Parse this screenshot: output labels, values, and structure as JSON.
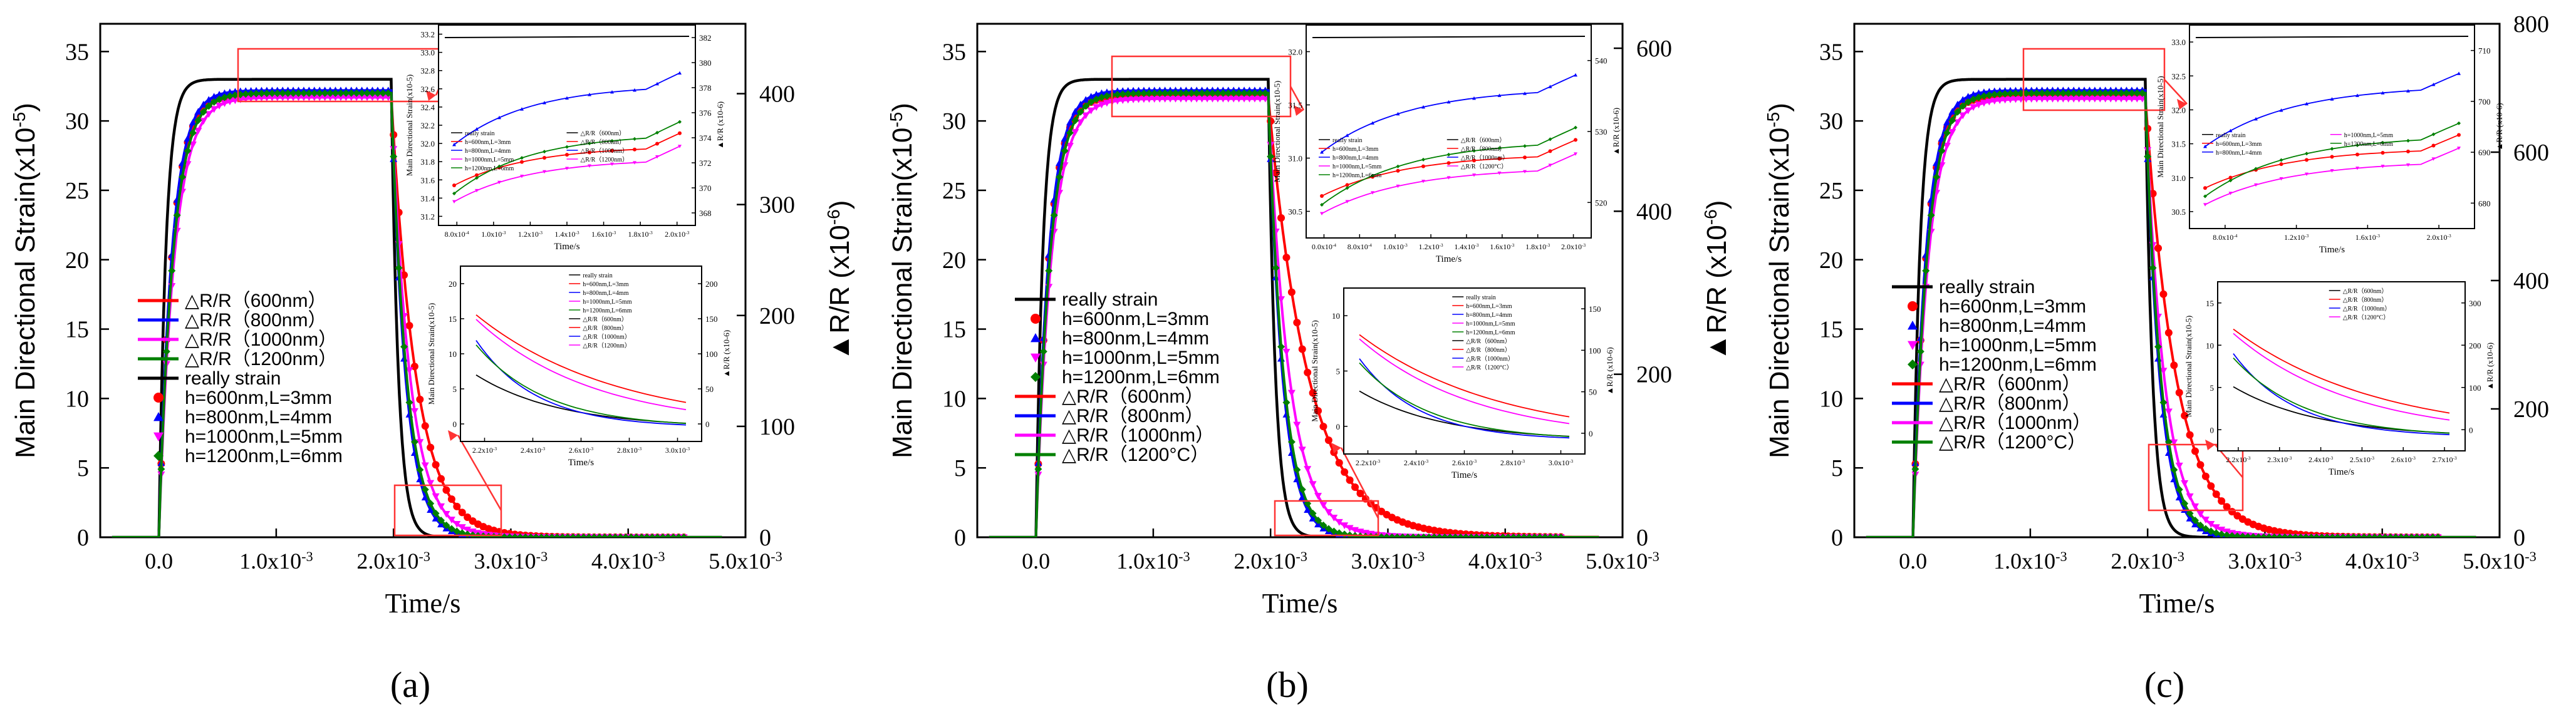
{
  "chart_data": [
    {
      "type": "line",
      "panel": "a",
      "caption": "(a)",
      "xlabel": "Time/s",
      "ylabel": "Main Directional Strain(x10-5)",
      "ylabel_base": "Main Directional Strain(x10",
      "ylabel_exp": "-5",
      "y2label": "▲R/R (x10-6)",
      "y2label_base": "▲R/R (x10",
      "y2label_exp": "-6",
      "xlim": [
        -0.0005,
        0.005
      ],
      "ylim": [
        0,
        37
      ],
      "y2lim": [
        0,
        463
      ],
      "x_ticks": [
        "0.0",
        "1.0x10-3",
        "2.0x10-3",
        "3.0x10-3",
        "4.0x10-3",
        "5.0x10-3"
      ],
      "x_tick_values": [
        0,
        0.001,
        0.002,
        0.003,
        0.004,
        0.005
      ],
      "y_ticks": [
        0,
        5,
        10,
        15,
        20,
        25,
        30,
        35
      ],
      "y2_ticks": [
        0,
        100,
        200,
        300,
        400
      ],
      "legend": [
        {
          "label": "△R/R（600nm）",
          "color": "#ff0000",
          "kind": "line"
        },
        {
          "label": "△R/R（800nm）",
          "color": "#0000ff",
          "kind": "line"
        },
        {
          "label": "△R/R（1000nm）",
          "color": "#ff00ff",
          "kind": "line"
        },
        {
          "label": "△R/R（1200nm）",
          "color": "#008000",
          "kind": "line"
        },
        {
          "label": "really strain",
          "color": "#000000",
          "kind": "line"
        },
        {
          "label": "h=600nm,L=3mm",
          "color": "#ff0000",
          "kind": "circle"
        },
        {
          "label": "h=800nm,L=4mm",
          "color": "#0000ff",
          "kind": "triangle"
        },
        {
          "label": "h=1000nm,L=5mm",
          "color": "#ff00ff",
          "kind": "tridown"
        },
        {
          "label": "h=1200nm,L=6mm",
          "color": "#008000",
          "kind": "diamond"
        }
      ],
      "series": [
        {
          "name": "really strain",
          "color": "#000000",
          "plateau": 33.0,
          "tau_rise": 6e-05,
          "tau_fall": 6e-05
        },
        {
          "name": "h=600nm,L=3mm",
          "color": "#ff0000",
          "plateau": 31.9,
          "tau_rise": 0.00011,
          "tau_fall": 0.00021
        },
        {
          "name": "h=800nm,L=4mm",
          "color": "#0000ff",
          "plateau": 32.2,
          "tau_rise": 0.00011,
          "tau_fall": 0.00012
        },
        {
          "name": "h=1000nm,L=5mm",
          "color": "#ff00ff",
          "plateau": 31.7,
          "tau_rise": 0.00013,
          "tau_fall": 0.00016
        },
        {
          "name": "h=1200nm,L=6mm",
          "color": "#008000",
          "plateau": 32.0,
          "tau_rise": 0.00012,
          "tau_fall": 0.00013
        }
      ],
      "inset_top": {
        "x_ticks": [
          "8.0x10-4",
          "1.0x10-3",
          "1.2x10-3",
          "1.4x10-3",
          "1.6x10-3",
          "1.8x10-3",
          "2.0x10-3"
        ],
        "y_ticks": [
          "31.2",
          "31.4",
          "31.6",
          "31.8",
          "32.0",
          "32.2",
          "32.4",
          "32.6",
          "32.8",
          "33.0",
          "33.2"
        ],
        "y2_ticks": [
          "368",
          "370",
          "372",
          "374",
          "376",
          "378",
          "380",
          "382"
        ],
        "ylabel": "Main Directional Strain(x10-5)",
        "y2label": "▲R/R (x10-6)",
        "xlabel": "Time/s",
        "legend": [
          "really strain",
          "h=600nm,L=3mm",
          "h=800nm,L=4mm",
          "h=1000nm,L=5mm",
          "h=1200nm,L=6mm",
          "△R/R（600nm）",
          "△R/R（800nm）",
          "△R/R（1000nm）",
          "△R/R（1200nm）"
        ]
      },
      "inset_bottom": {
        "x_ticks": [
          "2.2x10-3",
          "2.4x10-3",
          "2.6x10-3",
          "2.8x10-3",
          "3.0x10-3"
        ],
        "y_ticks": [
          "0",
          "5",
          "10",
          "15",
          "20"
        ],
        "y2_ticks": [
          "0",
          "50",
          "100",
          "150",
          "200"
        ],
        "ylabel": "Main Directional Strain(x10-5)",
        "y2label": "▲R/R (x10-6)",
        "xlabel": "Time/s",
        "legend": [
          "really strain",
          "h=600nm,L=3mm",
          "h=800nm,L=4mm",
          "h=1000nm,L=5mm",
          "h=1200nm,L=6mm",
          "△R/R（600nm）",
          "△R/R（800nm）",
          "△R/R（1000nm）",
          "△R/R（1200nm）"
        ]
      }
    },
    {
      "type": "line",
      "panel": "b",
      "caption": "(b)",
      "xlabel": "Time/s",
      "ylabel": "Main Directional Strain(x10-5)",
      "ylabel_base": "Main Directional Strain(x10",
      "ylabel_exp": "-5",
      "y2label": "▲R/R (x10-6)",
      "y2label_base": "▲R/R (x10",
      "y2label_exp": "-6",
      "xlim": [
        -0.0005,
        0.005
      ],
      "ylim": [
        0,
        37
      ],
      "y2lim": [
        0,
        630
      ],
      "x_ticks": [
        "0.0",
        "1.0x10-3",
        "2.0x10-3",
        "3.0x10-3",
        "4.0x10-3",
        "5.0x10-3"
      ],
      "x_tick_values": [
        0,
        0.001,
        0.002,
        0.003,
        0.004,
        0.005
      ],
      "y_ticks": [
        0,
        5,
        10,
        15,
        20,
        25,
        30,
        35
      ],
      "y2_ticks": [
        0,
        200,
        400,
        600
      ],
      "legend": [
        {
          "label": "really strain",
          "color": "#000000",
          "kind": "line"
        },
        {
          "label": "h=600nm,L=3mm",
          "color": "#ff0000",
          "kind": "circle"
        },
        {
          "label": "h=800nm,L=4mm",
          "color": "#0000ff",
          "kind": "triangle"
        },
        {
          "label": "h=1000nm,L=5mm",
          "color": "#ff00ff",
          "kind": "tridown"
        },
        {
          "label": "h=1200nm,L=6mm",
          "color": "#008000",
          "kind": "diamond"
        },
        {
          "label": "△R/R（600nm）",
          "color": "#ff0000",
          "kind": "line"
        },
        {
          "label": "△R/R（800nm）",
          "color": "#0000ff",
          "kind": "line"
        },
        {
          "label": "△R/R（1000nm）",
          "color": "#ff00ff",
          "kind": "line"
        },
        {
          "label": "△R/R（1200°C）",
          "color": "#008000",
          "kind": "line"
        }
      ],
      "series": [
        {
          "name": "really strain",
          "color": "#000000",
          "plateau": 33.0,
          "tau_rise": 6e-05,
          "tau_fall": 6e-05
        },
        {
          "name": "h=600nm,L=3mm",
          "color": "#ff0000",
          "plateau": 31.8,
          "tau_rise": 0.00011,
          "tau_fall": 0.00034
        },
        {
          "name": "h=800nm,L=4mm",
          "color": "#0000ff",
          "plateau": 32.2,
          "tau_rise": 0.00011,
          "tau_fall": 0.00012
        },
        {
          "name": "h=1000nm,L=5mm",
          "color": "#ff00ff",
          "plateau": 31.6,
          "tau_rise": 0.00013,
          "tau_fall": 0.00018
        },
        {
          "name": "h=1200nm,L=6mm",
          "color": "#008000",
          "plateau": 32.0,
          "tau_rise": 0.00012,
          "tau_fall": 0.00013
        }
      ],
      "inset_top": {
        "x_ticks": [
          "0.0x10-4",
          "8.0x10-4",
          "1.0x10-3",
          "1.2x10-3",
          "1.4x10-3",
          "1.6x10-3",
          "1.8x10-3",
          "2.0x10-3"
        ],
        "y_ticks": [
          "30.5",
          "31.0",
          "31.5",
          "32.0"
        ],
        "y2_ticks": [
          "520",
          "530",
          "540"
        ],
        "ylabel": "Main Directional Strain(x10-5)",
        "y2label": "▲R/R (x10-6)",
        "xlabel": "Time/s",
        "legend": [
          "really strain",
          "h=600nm,L=3mm",
          "h=800nm,L=4mm",
          "h=1000nm,L=5mm",
          "h=1200nm,L=6mm",
          "△R/R（600nm）",
          "△R/R（800nm）",
          "△R/R（1000nm）",
          "△R/R（1200°C）"
        ]
      },
      "inset_bottom": {
        "x_ticks": [
          "2.2x10-3",
          "2.4x10-3",
          "2.6x10-3",
          "2.8x10-3",
          "3.0x10-3"
        ],
        "y_ticks": [
          "0",
          "5",
          "10"
        ],
        "y2_ticks": [
          "0",
          "50",
          "100",
          "150"
        ],
        "ylabel": "Main Directional Strain(x10-5)",
        "y2label": "▲R/R (x10-6)",
        "xlabel": "Time/s",
        "legend": [
          "really strain",
          "h=600nm,L=3mm",
          "h=800nm,L=4mm",
          "h=1000nm,L=5mm",
          "h=1200nm,L=6mm",
          "△R/R（600nm）",
          "△R/R（800nm）",
          "△R/R（1000nm）",
          "△R/R（1200°C）"
        ]
      }
    },
    {
      "type": "line",
      "panel": "c",
      "caption": "(c)",
      "xlabel": "Time/s",
      "ylabel": "Main Directional Strain(x10-5)",
      "ylabel_base": "Main Directional Strain(x10",
      "ylabel_exp": "-5",
      "y2label": "▲R/R (x10-6)",
      "y2label_base": "▲R/R (x10",
      "y2label_exp": "-6",
      "xlim": [
        -0.0005,
        0.005
      ],
      "ylim": [
        0,
        37
      ],
      "y2lim": [
        0,
        800
      ],
      "x_ticks": [
        "0.0",
        "1.0x10-3",
        "2.0x10-3",
        "3.0x10-3",
        "4.0x10-3",
        "5.0x10-3"
      ],
      "x_tick_values": [
        0,
        0.001,
        0.002,
        0.003,
        0.004,
        0.005
      ],
      "y_ticks": [
        0,
        5,
        10,
        15,
        20,
        25,
        30,
        35
      ],
      "y2_ticks": [
        0,
        200,
        400,
        600,
        800
      ],
      "legend": [
        {
          "label": "really strain",
          "color": "#000000",
          "kind": "line"
        },
        {
          "label": "h=600nm,L=3mm",
          "color": "#ff0000",
          "kind": "circle"
        },
        {
          "label": "h=800nm,L=4mm",
          "color": "#0000ff",
          "kind": "triangle"
        },
        {
          "label": "h=1000nm,L=5mm",
          "color": "#ff00ff",
          "kind": "tridown"
        },
        {
          "label": "h=1200nm,L=6mm",
          "color": "#008000",
          "kind": "diamond"
        },
        {
          "label": "△R/R（600nm）",
          "color": "#ff0000",
          "kind": "line"
        },
        {
          "label": "△R/R（800nm）",
          "color": "#0000ff",
          "kind": "line"
        },
        {
          "label": "△R/R（1000nm）",
          "color": "#ff00ff",
          "kind": "line"
        },
        {
          "label": "△R/R（1200°C）",
          "color": "#008000",
          "kind": "line"
        }
      ],
      "series": [
        {
          "name": "really strain",
          "color": "#000000",
          "plateau": 33.0,
          "tau_rise": 6e-05,
          "tau_fall": 6e-05
        },
        {
          "name": "h=600nm,L=3mm",
          "color": "#ff0000",
          "plateau": 31.8,
          "tau_rise": 0.00011,
          "tau_fall": 0.00026
        },
        {
          "name": "h=800nm,L=4mm",
          "color": "#0000ff",
          "plateau": 32.2,
          "tau_rise": 0.00011,
          "tau_fall": 0.00012
        },
        {
          "name": "h=1000nm,L=5mm",
          "color": "#ff00ff",
          "plateau": 31.6,
          "tau_rise": 0.00013,
          "tau_fall": 0.00016
        },
        {
          "name": "h=1200nm,L=6mm",
          "color": "#008000",
          "plateau": 32.0,
          "tau_rise": 0.00012,
          "tau_fall": 0.00013
        }
      ],
      "inset_top": {
        "x_ticks": [
          "8.0x10-4",
          "1.2x10-3",
          "1.6x10-3",
          "2.0x10-3"
        ],
        "y_ticks": [
          "30.5",
          "31.0",
          "31.5",
          "32.0",
          "32.5",
          "33.0"
        ],
        "y2_ticks": [
          "680",
          "690",
          "700",
          "710"
        ],
        "ylabel": "Main Directional Strain(x10-5)",
        "y2label": "▲R/R (x10-6)",
        "xlabel": "Time/s",
        "legend": [
          "really strain",
          "h=600nm,L=3mm",
          "h=800nm,L=4mm",
          "h=1000nm,L=5mm",
          "h=1200nm,L=6mm"
        ]
      },
      "inset_bottom": {
        "x_ticks": [
          "2.2x10-3",
          "2.3x10-3",
          "2.4x10-3",
          "2.5x10-3",
          "2.6x10-3",
          "2.7x10-3"
        ],
        "y_ticks": [
          "0",
          "5",
          "10",
          "15"
        ],
        "y2_ticks": [
          "0",
          "100",
          "200",
          "300"
        ],
        "ylabel": "Main Directional Strain(x10-5)",
        "y2label": "▲R/R (x10-6)",
        "xlabel": "Time/s",
        "legend": [
          "△R/R（600nm）",
          "△R/R（800nm）",
          "△R/R（1000nm）",
          "△R/R（1200°C）"
        ]
      }
    }
  ]
}
